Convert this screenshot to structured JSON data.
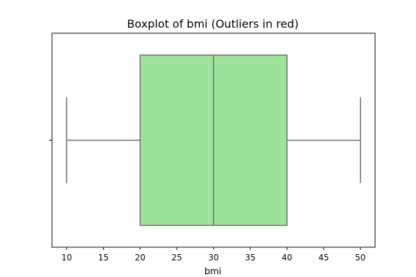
{
  "chart_data": {
    "type": "box",
    "title": "Boxplot of bmi (Outliers in red)",
    "xlabel": "bmi",
    "ylabel": "",
    "xlim": [
      8,
      52
    ],
    "x_ticks": [
      10,
      15,
      20,
      25,
      30,
      35,
      40,
      45,
      50
    ],
    "x_tick_labels": [
      "10",
      "15",
      "20",
      "25",
      "30",
      "35",
      "40",
      "45",
      "50"
    ],
    "orientation": "horizontal",
    "series": [
      {
        "whisker_low": 10,
        "q1": 20,
        "median": 30,
        "q3": 40,
        "whisker_high": 50,
        "outliers": []
      }
    ],
    "colors": {
      "box_fill": "#9de39b",
      "box_edge": "#6e6e6e",
      "axes": "#000000"
    },
    "grid": false,
    "legend": "none"
  }
}
